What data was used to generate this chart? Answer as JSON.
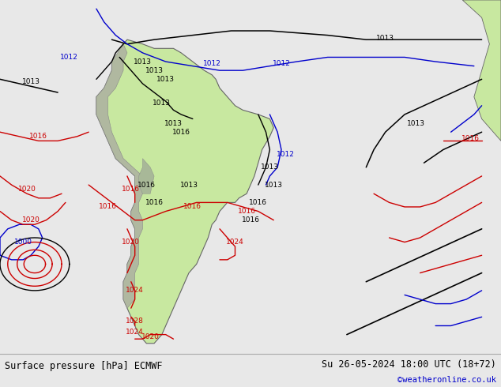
{
  "title_left": "Surface pressure [hPa] ECMWF",
  "title_right": "Su 26-05-2024 18:00 UTC (18+72)",
  "credit": "©weatheronline.co.uk",
  "bg_color": "#cccccc",
  "land_color": "#c8e8a0",
  "ocean_color": "#cccccc",
  "footer_bg": "#e8e8e8",
  "figsize": [
    6.34,
    4.9
  ],
  "dpi": 100,
  "map_xlim": [
    -100,
    20
  ],
  "map_ylim": [
    -60,
    20
  ]
}
